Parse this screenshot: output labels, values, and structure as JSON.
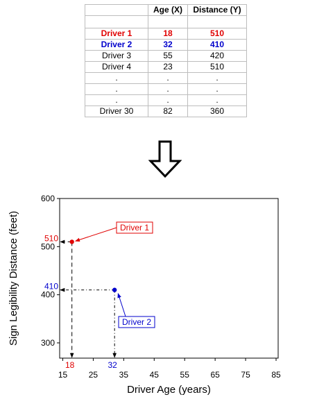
{
  "table": {
    "headers": [
      "",
      "Age (X)",
      "Distance (Y)"
    ],
    "rows": [
      {
        "label": "Driver 1",
        "age": "18",
        "distance": "510",
        "style": "red"
      },
      {
        "label": "Driver 2",
        "age": "32",
        "distance": "410",
        "style": "blue"
      },
      {
        "label": "Driver 3",
        "age": "55",
        "distance": "420",
        "style": ""
      },
      {
        "label": "Driver 4",
        "age": "23",
        "distance": "510",
        "style": ""
      },
      {
        "label": ".",
        "age": ".",
        "distance": ".",
        "style": ""
      },
      {
        "label": ".",
        "age": ".",
        "distance": ".",
        "style": ""
      },
      {
        "label": ".",
        "age": ".",
        "distance": ".",
        "style": ""
      },
      {
        "label": "Driver 30",
        "age": "82",
        "distance": "360",
        "style": ""
      }
    ]
  },
  "chart_data": {
    "type": "scatter",
    "xlabel": "Driver Age (years)",
    "ylabel": "Sign Legibility Distance (feet)",
    "xlim": [
      15,
      85
    ],
    "ylim": [
      300,
      600
    ],
    "xticks": [
      15,
      25,
      35,
      45,
      55,
      65,
      75,
      85
    ],
    "yticks": [
      300,
      400,
      500,
      600
    ],
    "points": [
      {
        "x": 18,
        "y": 510,
        "label": "Driver 1",
        "color": "#e00000",
        "x_label": "18",
        "y_label": "510"
      },
      {
        "x": 32,
        "y": 410,
        "label": "Driver 2",
        "color": "#0000cc",
        "x_label": "32",
        "y_label": "410"
      }
    ],
    "grid": false
  },
  "colors": {
    "driver1": "#e00000",
    "driver2": "#0000cc"
  }
}
